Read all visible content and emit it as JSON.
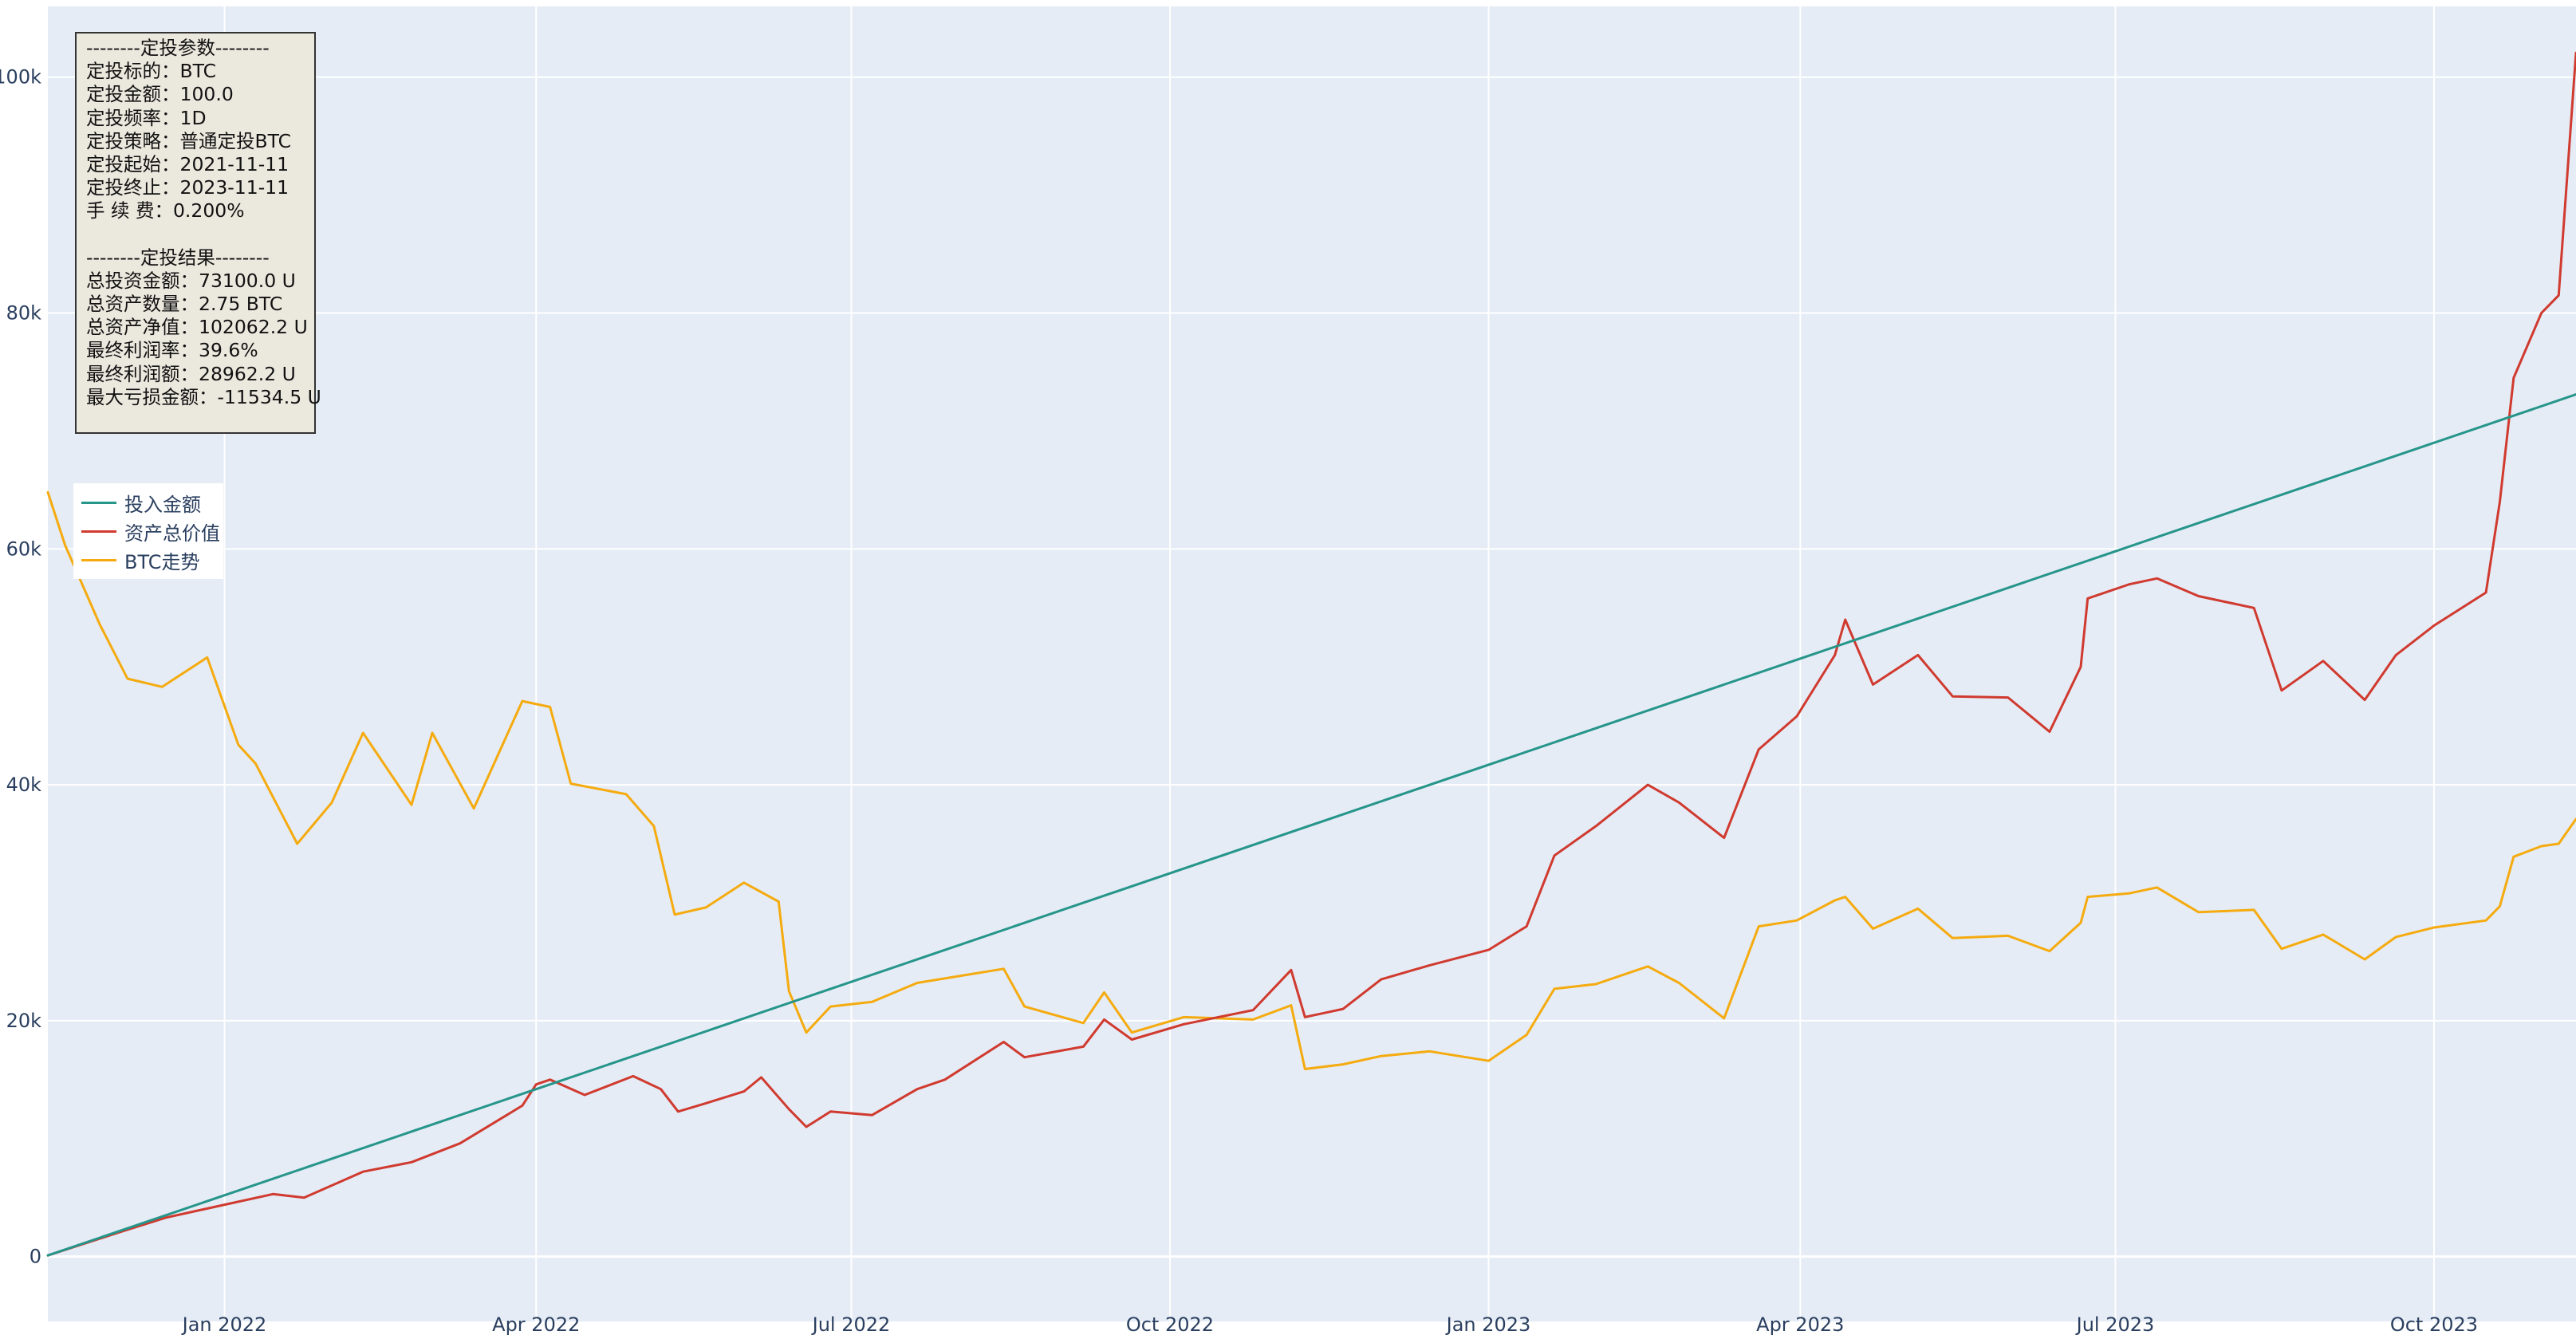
{
  "colors": {
    "background": "#ffffff",
    "plot_bg": "#e5ecf6",
    "grid": "#ffffff",
    "tick_text": "#2a3f5f",
    "invested": "#26958a",
    "total_value": "#d03a2f",
    "btc": "#f5ab0f",
    "stats_bg": "#ebe8de"
  },
  "stats": {
    "lines": [
      "--------定投参数--------",
      "定投标的：BTC",
      "定投金额：100.0",
      "定投频率：1D",
      "定投策略：普通定投BTC",
      "定投起始：2021-11-11",
      "定投终止：2023-11-11",
      "手 续 费：0.200%",
      "",
      "--------定投结果--------",
      "总投资金额：73100.0 U",
      "总资产数量：2.75 BTC",
      "总资产净值：102062.2 U",
      "最终利润率：39.6%",
      "最终利润额：28962.2 U",
      "最大亏损金额：-11534.5 U"
    ]
  },
  "legend": {
    "items": [
      "投入金额",
      "资产总价值",
      "BTC走势"
    ]
  },
  "chart_data": {
    "type": "line",
    "x_range": [
      "2021-11-11",
      "2023-11-11"
    ],
    "ylim": [
      -5500,
      106000
    ],
    "grid": true,
    "legend_position": "left",
    "x_ticks": [
      {
        "date": "2022-01-01",
        "label": "Jan 2022"
      },
      {
        "date": "2022-04-01",
        "label": "Apr 2022"
      },
      {
        "date": "2022-07-01",
        "label": "Jul 2022"
      },
      {
        "date": "2022-10-01",
        "label": "Oct 2022"
      },
      {
        "date": "2023-01-01",
        "label": "Jan 2023"
      },
      {
        "date": "2023-04-01",
        "label": "Apr 2023"
      },
      {
        "date": "2023-07-01",
        "label": "Jul 2023"
      },
      {
        "date": "2023-10-01",
        "label": "Oct 2023"
      }
    ],
    "y_ticks": [
      {
        "value": 0,
        "label": "0"
      },
      {
        "value": 20000,
        "label": "20k"
      },
      {
        "value": 40000,
        "label": "40k"
      },
      {
        "value": 60000,
        "label": "60k"
      },
      {
        "value": 80000,
        "label": "80k"
      },
      {
        "value": 100000,
        "label": "100k"
      }
    ],
    "series": [
      {
        "name": "投入金额",
        "color": "#26958a",
        "points": [
          [
            "2021-11-11",
            100
          ],
          [
            "2023-11-11",
            73100
          ]
        ]
      },
      {
        "name": "资产总价值",
        "color": "#d03a2f",
        "points": [
          [
            "2021-11-11",
            100
          ],
          [
            "2021-12-01",
            2000
          ],
          [
            "2021-12-15",
            3300
          ],
          [
            "2022-01-01",
            4400
          ],
          [
            "2022-01-15",
            5300
          ],
          [
            "2022-01-24",
            5000
          ],
          [
            "2022-02-10",
            7200
          ],
          [
            "2022-02-24",
            8000
          ],
          [
            "2022-03-10",
            9600
          ],
          [
            "2022-03-28",
            12800
          ],
          [
            "2022-04-01",
            14600
          ],
          [
            "2022-04-05",
            15000
          ],
          [
            "2022-04-15",
            13700
          ],
          [
            "2022-04-29",
            15300
          ],
          [
            "2022-05-07",
            14200
          ],
          [
            "2022-05-12",
            12300
          ],
          [
            "2022-05-20",
            13000
          ],
          [
            "2022-05-31",
            14000
          ],
          [
            "2022-06-05",
            15200
          ],
          [
            "2022-06-13",
            12500
          ],
          [
            "2022-06-18",
            11000
          ],
          [
            "2022-06-25",
            12300
          ],
          [
            "2022-07-07",
            12000
          ],
          [
            "2022-07-20",
            14200
          ],
          [
            "2022-07-28",
            15000
          ],
          [
            "2022-08-14",
            18200
          ],
          [
            "2022-08-20",
            16900
          ],
          [
            "2022-09-06",
            17800
          ],
          [
            "2022-09-12",
            20100
          ],
          [
            "2022-09-20",
            18400
          ],
          [
            "2022-10-05",
            19700
          ],
          [
            "2022-10-25",
            20900
          ],
          [
            "2022-11-05",
            24300
          ],
          [
            "2022-11-09",
            20300
          ],
          [
            "2022-11-20",
            21000
          ],
          [
            "2022-12-01",
            23500
          ],
          [
            "2022-12-15",
            24700
          ],
          [
            "2023-01-01",
            26000
          ],
          [
            "2023-01-12",
            28000
          ],
          [
            "2023-01-20",
            34000
          ],
          [
            "2023-02-01",
            36500
          ],
          [
            "2023-02-16",
            40000
          ],
          [
            "2023-02-25",
            38500
          ],
          [
            "2023-03-10",
            35500
          ],
          [
            "2023-03-20",
            43000
          ],
          [
            "2023-03-31",
            45800
          ],
          [
            "2023-04-11",
            51000
          ],
          [
            "2023-04-14",
            54000
          ],
          [
            "2023-04-22",
            48500
          ],
          [
            "2023-05-05",
            51000
          ],
          [
            "2023-05-15",
            47500
          ],
          [
            "2023-05-31",
            47400
          ],
          [
            "2023-06-12",
            44500
          ],
          [
            "2023-06-21",
            50000
          ],
          [
            "2023-06-23",
            55800
          ],
          [
            "2023-07-05",
            57000
          ],
          [
            "2023-07-13",
            57500
          ],
          [
            "2023-07-25",
            56000
          ],
          [
            "2023-08-10",
            55000
          ],
          [
            "2023-08-18",
            48000
          ],
          [
            "2023-08-30",
            50500
          ],
          [
            "2023-09-11",
            47200
          ],
          [
            "2023-09-20",
            51000
          ],
          [
            "2023-10-01",
            53500
          ],
          [
            "2023-10-16",
            56300
          ],
          [
            "2023-10-20",
            64000
          ],
          [
            "2023-10-24",
            74500
          ],
          [
            "2023-11-01",
            80000
          ],
          [
            "2023-11-06",
            81500
          ],
          [
            "2023-11-11",
            102062
          ]
        ]
      },
      {
        "name": "BTC走势",
        "color": "#f5ab0f",
        "points": [
          [
            "2021-11-11",
            64800
          ],
          [
            "2021-11-16",
            60300
          ],
          [
            "2021-11-26",
            53600
          ],
          [
            "2021-12-04",
            49000
          ],
          [
            "2021-12-14",
            48300
          ],
          [
            "2021-12-27",
            50800
          ],
          [
            "2022-01-05",
            43400
          ],
          [
            "2022-01-10",
            41800
          ],
          [
            "2022-01-22",
            35000
          ],
          [
            "2022-02-01",
            38500
          ],
          [
            "2022-02-10",
            44400
          ],
          [
            "2022-02-24",
            38300
          ],
          [
            "2022-03-02",
            44400
          ],
          [
            "2022-03-14",
            38000
          ],
          [
            "2022-03-28",
            47100
          ],
          [
            "2022-04-05",
            46600
          ],
          [
            "2022-04-11",
            40100
          ],
          [
            "2022-04-27",
            39200
          ],
          [
            "2022-05-05",
            36500
          ],
          [
            "2022-05-11",
            29000
          ],
          [
            "2022-05-20",
            29600
          ],
          [
            "2022-05-31",
            31700
          ],
          [
            "2022-06-10",
            30100
          ],
          [
            "2022-06-13",
            22500
          ],
          [
            "2022-06-18",
            19000
          ],
          [
            "2022-06-25",
            21200
          ],
          [
            "2022-07-07",
            21600
          ],
          [
            "2022-07-20",
            23200
          ],
          [
            "2022-08-14",
            24400
          ],
          [
            "2022-08-20",
            21200
          ],
          [
            "2022-09-06",
            19800
          ],
          [
            "2022-09-12",
            22400
          ],
          [
            "2022-09-20",
            19000
          ],
          [
            "2022-10-05",
            20300
          ],
          [
            "2022-10-25",
            20100
          ],
          [
            "2022-11-05",
            21300
          ],
          [
            "2022-11-09",
            15900
          ],
          [
            "2022-11-20",
            16300
          ],
          [
            "2022-12-01",
            17000
          ],
          [
            "2022-12-15",
            17400
          ],
          [
            "2023-01-01",
            16600
          ],
          [
            "2023-01-12",
            18800
          ],
          [
            "2023-01-20",
            22700
          ],
          [
            "2023-02-01",
            23100
          ],
          [
            "2023-02-16",
            24600
          ],
          [
            "2023-02-25",
            23200
          ],
          [
            "2023-03-10",
            20200
          ],
          [
            "2023-03-20",
            28000
          ],
          [
            "2023-03-31",
            28500
          ],
          [
            "2023-04-11",
            30200
          ],
          [
            "2023-04-14",
            30500
          ],
          [
            "2023-04-22",
            27800
          ],
          [
            "2023-05-05",
            29500
          ],
          [
            "2023-05-15",
            27000
          ],
          [
            "2023-05-31",
            27200
          ],
          [
            "2023-06-12",
            25900
          ],
          [
            "2023-06-21",
            28300
          ],
          [
            "2023-06-23",
            30500
          ],
          [
            "2023-07-05",
            30800
          ],
          [
            "2023-07-13",
            31300
          ],
          [
            "2023-07-25",
            29200
          ],
          [
            "2023-08-10",
            29400
          ],
          [
            "2023-08-18",
            26100
          ],
          [
            "2023-08-30",
            27300
          ],
          [
            "2023-09-11",
            25200
          ],
          [
            "2023-09-20",
            27100
          ],
          [
            "2023-10-01",
            27900
          ],
          [
            "2023-10-16",
            28500
          ],
          [
            "2023-10-20",
            29700
          ],
          [
            "2023-10-24",
            33900
          ],
          [
            "2023-11-01",
            34800
          ],
          [
            "2023-11-06",
            35000
          ],
          [
            "2023-11-11",
            37100
          ]
        ]
      }
    ]
  }
}
